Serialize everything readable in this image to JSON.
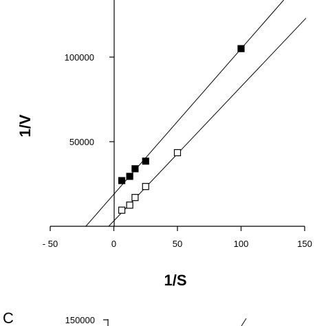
{
  "chart_data": [
    {
      "type": "scatter",
      "title": "",
      "xlabel": "1/S",
      "ylabel": "1/V",
      "xlim": [
        -50,
        150
      ],
      "ylim": [
        0,
        130000
      ],
      "x_ticks": [
        -50,
        0,
        50,
        100,
        150
      ],
      "x_tick_labels": [
        "- 50",
        "0",
        "50",
        "100",
        "150"
      ],
      "y_ticks": [
        50000,
        100000
      ],
      "y_tick_labels": [
        "50000",
        "100000"
      ],
      "grid": false,
      "legend": "none",
      "series": [
        {
          "marker": "filled-square",
          "color": "#000000",
          "points": [
            [
              6.25,
              27000
            ],
            [
              12.5,
              29500
            ],
            [
              16.7,
              34000
            ],
            [
              25,
              38500
            ],
            [
              100,
              105000
            ]
          ],
          "fit_line": {
            "x": [
              -22,
              135
            ],
            "y": [
              0,
              135000
            ]
          }
        },
        {
          "marker": "open-square",
          "color": "#000000",
          "points": [
            [
              6.25,
              9500
            ],
            [
              12.5,
              12500
            ],
            [
              16.7,
              17000
            ],
            [
              25,
              23500
            ],
            [
              50,
              43500
            ]
          ],
          "fit_line": {
            "x": [
              -4,
              151
            ],
            "y": [
              0,
              123000
            ]
          }
        }
      ]
    },
    {
      "type": "scatter",
      "panel_letter": "C",
      "y_ticks": [
        150000
      ],
      "y_tick_labels": [
        "150000"
      ]
    }
  ]
}
